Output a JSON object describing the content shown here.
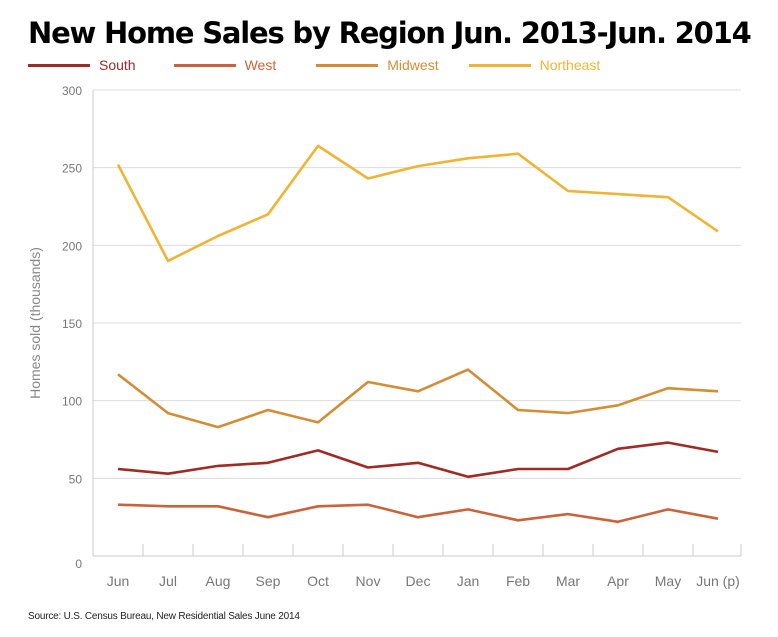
{
  "chart_data": {
    "type": "line",
    "title": "New Home Sales by Region Jun. 2013-Jun. 2014",
    "xlabel": "",
    "ylabel": "Homes sold (thousands)",
    "ylim": [
      0,
      300
    ],
    "yticks": [
      0,
      50,
      100,
      150,
      200,
      250,
      300
    ],
    "ytick_labels": [
      "0",
      "50",
      "100",
      "150",
      "200",
      "250",
      "300"
    ],
    "grid": true,
    "legend_position": "top-left",
    "categories": [
      "Jun",
      "Jul",
      "Aug",
      "Sep",
      "Oct",
      "Nov",
      "Dec",
      "Jan",
      "Feb",
      "Mar",
      "Apr",
      "May",
      "Jun (p)"
    ],
    "series": [
      {
        "name": "South",
        "color": "#9e2b25",
        "values": [
          56,
          53,
          58,
          60,
          68,
          57,
          60,
          51,
          56,
          56,
          69,
          73,
          67
        ]
      },
      {
        "name": "West",
        "color": "#c9643a",
        "values": [
          33,
          32,
          32,
          25,
          32,
          33,
          25,
          30,
          23,
          27,
          22,
          30,
          24
        ]
      },
      {
        "name": "Midwest",
        "color": "#d48d35",
        "values": [
          117,
          92,
          83,
          94,
          86,
          112,
          106,
          120,
          94,
          92,
          97,
          108,
          106
        ]
      },
      {
        "name": "Northeast",
        "color": "#efb434",
        "values": [
          252,
          190,
          206,
          220,
          264,
          243,
          251,
          256,
          259,
          235,
          233,
          231,
          209
        ]
      }
    ],
    "source": "Source: U.S. Census Bureau, New Residential Sales June 2014"
  },
  "colors": {
    "grid": "#dcdcdc",
    "axis": "#cccccc",
    "tick_text": "#777777"
  }
}
